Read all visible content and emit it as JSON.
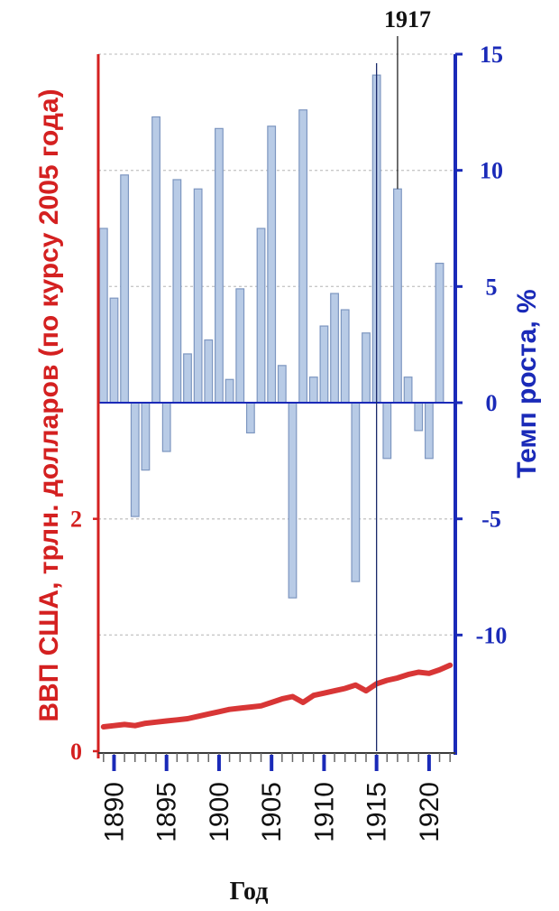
{
  "chart_data": {
    "type": "bar",
    "xlabel": "Год",
    "ylabel_left": "ВВП США, трлн. долларов (по курсу 2005 года)",
    "ylabel_right": "Темп роста, %",
    "x_ticks": [
      "1890",
      "1895",
      "1900",
      "1905",
      "1910",
      "1915",
      "1920"
    ],
    "y_right_ticks": [
      "15",
      "10",
      "5",
      "0",
      "-5",
      "-10"
    ],
    "y_left_ticks": [
      "2",
      "0"
    ],
    "y_right_range": [
      -15,
      15
    ],
    "y_left_range": [
      0,
      6
    ],
    "x_range": [
      1889,
      1922
    ],
    "grid": true,
    "annotation": {
      "label": "1917",
      "x": 1917
    },
    "reference_line": {
      "x": 1915
    },
    "growth_rate": {
      "name": "",
      "color": "#b8cbe6",
      "edge_color": "#7d96c0",
      "x": [
        1889,
        1890,
        1891,
        1892,
        1893,
        1894,
        1895,
        1896,
        1897,
        1898,
        1899,
        1900,
        1901,
        1902,
        1903,
        1904,
        1905,
        1906,
        1907,
        1908,
        1909,
        1910,
        1911,
        1912,
        1913,
        1914,
        1915,
        1916,
        1917,
        1918,
        1919,
        1920,
        1921,
        1922
      ],
      "values": [
        7.5,
        4.5,
        9.8,
        -4.9,
        -2.9,
        12.3,
        -2.1,
        9.6,
        2.1,
        9.2,
        2.7,
        11.8,
        1.0,
        4.9,
        -1.3,
        7.5,
        11.9,
        1.6,
        -8.4,
        12.6,
        1.1,
        3.3,
        4.7,
        4.0,
        -7.7,
        3.0,
        14.1,
        -2.4,
        9.2,
        1.1,
        -1.2,
        -2.4,
        6.0,
        0
      ]
    },
    "gdp": {
      "name": "",
      "color": "#d42020",
      "x": [
        1889,
        1890,
        1891,
        1892,
        1893,
        1894,
        1895,
        1896,
        1897,
        1898,
        1899,
        1900,
        1901,
        1902,
        1903,
        1904,
        1905,
        1906,
        1907,
        1908,
        1909,
        1910,
        1911,
        1912,
        1913,
        1914,
        1915,
        1916,
        1917,
        1918,
        1919,
        1920,
        1921,
        1922
      ],
      "values": [
        0.21,
        0.22,
        0.23,
        0.22,
        0.24,
        0.25,
        0.26,
        0.27,
        0.28,
        0.3,
        0.32,
        0.34,
        0.36,
        0.37,
        0.38,
        0.39,
        0.42,
        0.45,
        0.47,
        0.42,
        0.48,
        0.5,
        0.52,
        0.54,
        0.57,
        0.52,
        0.58,
        0.61,
        0.63,
        0.66,
        0.68,
        0.67,
        0.7,
        0.74
      ]
    }
  }
}
